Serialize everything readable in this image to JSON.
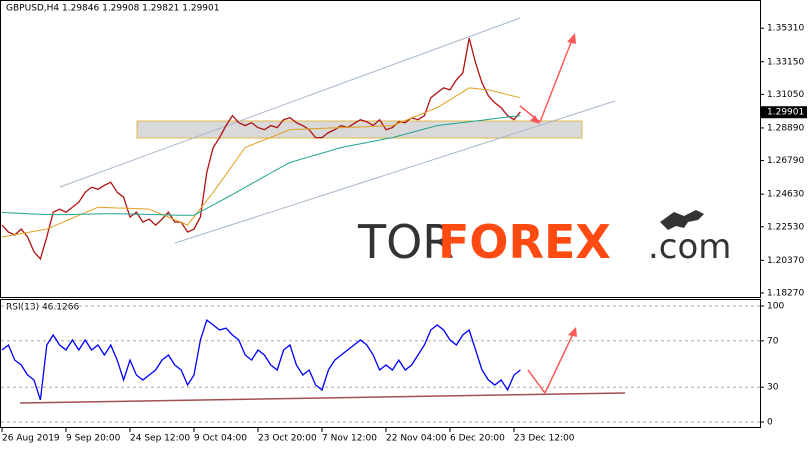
{
  "chart_data": [
    {
      "type": "line",
      "title": "GBPUSD,H4  1.29846 1.29908 1.29821 1.29901",
      "categories": [
        "26 Aug 2019",
        null,
        null,
        null,
        null,
        null,
        null,
        null,
        null,
        null,
        "9 Sep 20:00",
        null,
        null,
        null,
        null,
        null,
        null,
        null,
        null,
        null,
        "24 Sep 12:00",
        null,
        null,
        null,
        null,
        null,
        null,
        null,
        null,
        null,
        "9 Oct 04:00",
        null,
        null,
        null,
        null,
        null,
        null,
        null,
        null,
        null,
        "23 Oct 20:00",
        null,
        null,
        null,
        null,
        null,
        null,
        null,
        null,
        null,
        "7 Nov 12:00",
        null,
        null,
        null,
        null,
        null,
        null,
        null,
        null,
        null,
        "22 Nov 04:00",
        null,
        null,
        null,
        null,
        null,
        null,
        null,
        null,
        null,
        "6 Dec 20:00",
        null,
        null,
        null,
        null,
        null,
        null,
        null,
        null,
        null,
        "23 Dec 12:00",
        null
      ],
      "series": [
        {
          "color": "#b01010",
          "values": [
            1.2264,
            1.2219,
            1.22,
            1.2238,
            1.2187,
            1.2091,
            1.2046,
            1.2187,
            1.2347,
            1.2366,
            1.2347,
            1.2379,
            1.2411,
            1.2475,
            1.2507,
            1.2494,
            1.252,
            1.2539,
            1.2475,
            1.2443,
            1.2315,
            1.2347,
            1.2283,
            1.2302,
            1.2264,
            1.2302,
            1.2347,
            1.2283,
            1.2283,
            1.2219,
            1.2238,
            1.2315,
            1.2603,
            1.2763,
            1.2827,
            1.2904,
            1.2968,
            1.2923,
            1.2904,
            1.2923,
            1.2891,
            1.2878,
            1.2904,
            1.2891,
            1.2942,
            1.2955,
            1.2923,
            1.2904,
            1.2878,
            1.2827,
            1.2827,
            1.2859,
            1.2878,
            1.2904,
            1.2891,
            1.2917,
            1.2942,
            1.2929,
            1.2904,
            1.2942,
            1.2878,
            1.2891,
            1.2929,
            1.2923,
            1.2955,
            1.2942,
            1.2968,
            1.3083,
            1.3115,
            1.3147,
            1.3134,
            1.3198,
            1.3243,
            1.3467,
            1.3307,
            1.3179,
            1.3096,
            1.3051,
            1.3019,
            1.2968,
            1.2942,
            1.2993
          ]
        },
        {
          "color": "#e0a020",
          "values": [
            1.2187,
            1.2194,
            1.2201,
            1.2209,
            1.2216,
            1.2223,
            1.2231,
            1.2238,
            1.2256,
            1.2273,
            1.2291,
            1.2309,
            1.2326,
            1.2344,
            1.2361,
            1.2379,
            1.2377,
            1.2376,
            1.2374,
            1.2373,
            1.2371,
            1.237,
            1.2368,
            1.2366,
            1.2349,
            1.2332,
            1.2315,
            1.2298,
            1.2281,
            1.2264,
            1.2317,
            1.237,
            1.2422,
            1.2475,
            1.2533,
            1.259,
            1.2648,
            1.2705,
            1.2763,
            1.2779,
            1.2796,
            1.2812,
            1.2829,
            1.2845,
            1.2862,
            1.2878,
            1.288,
            1.2881,
            1.2883,
            1.2885,
            1.2886,
            1.2888,
            1.2889,
            1.2891,
            1.2893,
            1.2894,
            1.2896,
            1.2897,
            1.2899,
            1.2901,
            1.2902,
            1.2904,
            1.292,
            1.2937,
            1.2953,
            1.297,
            1.2986,
            1.3003,
            1.3019,
            1.3045,
            1.307,
            1.3096,
            1.3121,
            1.3147,
            1.3143,
            1.3138,
            1.3134,
            1.3124,
            1.3114,
            1.3103,
            1.3093,
            1.3083
          ]
        },
        {
          "color": "#1fa38f",
          "values": [
            1.2345,
            1.2343,
            1.2341,
            1.2339,
            1.2337,
            1.2335,
            1.2333,
            1.2332,
            1.2331,
            1.2331,
            1.2331,
            1.2332,
            1.2333,
            1.2334,
            1.2335,
            1.2336,
            1.2337,
            1.2337,
            1.2337,
            1.2336,
            1.2335,
            1.2334,
            1.2333,
            1.2332,
            1.2331,
            1.233,
            1.2329,
            1.2328,
            1.2327,
            1.2327,
            1.2328,
            1.235,
            1.2372,
            1.2394,
            1.2416,
            1.2438,
            1.246,
            1.2484,
            1.2507,
            1.253,
            1.2553,
            1.2576,
            1.2599,
            1.2622,
            1.2645,
            1.2667,
            1.2679,
            1.2691,
            1.2703,
            1.2715,
            1.2727,
            1.2739,
            1.2751,
            1.2763,
            1.2771,
            1.2779,
            1.2787,
            1.2795,
            1.2803,
            1.2811,
            1.2819,
            1.2827,
            1.2838,
            1.2849,
            1.286,
            1.2871,
            1.2882,
            1.2893,
            1.2904,
            1.2909,
            1.2914,
            1.2919,
            1.2924,
            1.2929,
            1.2934,
            1.2939,
            1.2944,
            1.2949,
            1.2954,
            1.2959,
            1.2964,
            1.2968
          ]
        }
      ],
      "ylim": [
        1.1801,
        1.3706
      ],
      "yticks": [
        {
          "value": 1.3531,
          "label": "1.35310"
        },
        {
          "value": 1.3315,
          "label": "1.33150"
        },
        {
          "value": 1.3105,
          "label": "1.31050"
        },
        {
          "value": 1.2889,
          "label": "1.28890"
        },
        {
          "value": 1.2679,
          "label": "1.26790"
        },
        {
          "value": 1.2463,
          "label": "1.24630"
        },
        {
          "value": 1.2253,
          "label": "1.22530"
        },
        {
          "value": 1.2037,
          "label": "1.20370"
        },
        {
          "value": 1.1827,
          "label": "1.18270"
        }
      ],
      "last_price": {
        "value": 1.29901,
        "label": "1.29901"
      },
      "watermark": [
        "TOR",
        "FOREX",
        ".com"
      ]
    },
    {
      "type": "line",
      "title": "RSI(13) 46.1266",
      "series": [
        {
          "color": "#0000ff",
          "values": [
            62.1,
            66.4,
            53.4,
            49.1,
            40.5,
            36.2,
            19.0,
            66.4,
            75.0,
            66.4,
            62.1,
            70.7,
            62.1,
            70.7,
            62.1,
            66.4,
            57.8,
            66.4,
            53.4,
            36.2,
            53.4,
            40.5,
            36.2,
            40.5,
            44.8,
            53.4,
            57.8,
            49.1,
            44.8,
            31.9,
            40.5,
            70.7,
            87.9,
            83.6,
            79.3,
            81.0,
            75.0,
            70.7,
            57.8,
            53.4,
            62.1,
            57.8,
            49.1,
            44.8,
            62.1,
            66.4,
            49.1,
            40.5,
            44.8,
            31.9,
            27.6,
            44.8,
            53.4,
            57.8,
            62.1,
            66.4,
            70.7,
            66.4,
            57.8,
            44.8,
            49.1,
            44.8,
            53.4,
            44.8,
            49.1,
            57.8,
            66.4,
            79.3,
            83.6,
            79.3,
            70.7,
            66.4,
            75.0,
            79.3,
            62.1,
            44.8,
            36.2,
            31.9,
            36.2,
            27.6,
            40.5,
            44.8
          ]
        }
      ],
      "ylim": [
        -5.2,
        105.2
      ],
      "yticks": [
        100,
        70,
        30,
        0
      ],
      "grid": true
    }
  ]
}
